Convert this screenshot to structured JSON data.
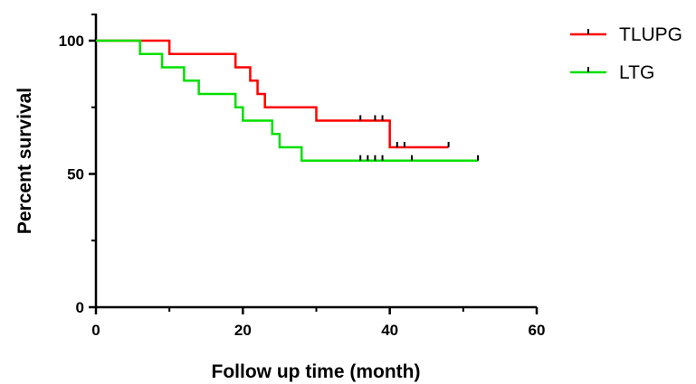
{
  "chart_data": {
    "type": "line",
    "subtype": "kaplan-meier step",
    "title": "",
    "xlabel": "Follow up time (month)",
    "ylabel": "Percent survival",
    "xlim": [
      0,
      60
    ],
    "ylim": [
      0,
      100
    ],
    "x_ticks": [
      0,
      20,
      40,
      60
    ],
    "y_ticks": [
      0,
      50,
      100
    ],
    "grid": false,
    "legend_position": "top-right",
    "series": [
      {
        "name": "TLUPG",
        "color": "#ff0000",
        "steps": [
          [
            0,
            100
          ],
          [
            10,
            95
          ],
          [
            19,
            90
          ],
          [
            21,
            85
          ],
          [
            22,
            80
          ],
          [
            23,
            75
          ],
          [
            30,
            70
          ],
          [
            40,
            60
          ],
          [
            48,
            60
          ]
        ],
        "censored": [
          [
            36,
            70
          ],
          [
            38,
            70
          ],
          [
            39,
            70
          ],
          [
            41,
            60
          ],
          [
            42,
            60
          ],
          [
            48,
            60
          ]
        ]
      },
      {
        "name": "LTG",
        "color": "#00e000",
        "steps": [
          [
            0,
            100
          ],
          [
            6,
            95
          ],
          [
            9,
            90
          ],
          [
            12,
            85
          ],
          [
            14,
            80
          ],
          [
            19,
            75
          ],
          [
            20,
            70
          ],
          [
            24,
            65
          ],
          [
            25,
            60
          ],
          [
            28,
            55
          ],
          [
            52,
            55
          ]
        ],
        "censored": [
          [
            36,
            55
          ],
          [
            37,
            55
          ],
          [
            38,
            55
          ],
          [
            39,
            55
          ],
          [
            43,
            55
          ],
          [
            52,
            55
          ]
        ]
      }
    ]
  }
}
